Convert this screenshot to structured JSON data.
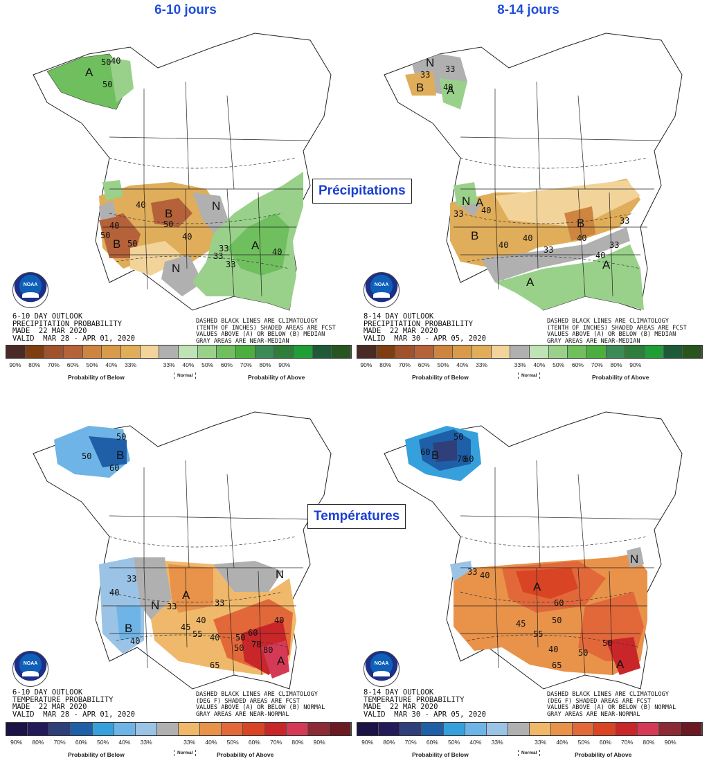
{
  "headers": {
    "left": "6-10 jours",
    "right": "8-14 jours"
  },
  "sections": {
    "precip": "Précipitations",
    "temp": "Températures"
  },
  "logo": {
    "text": "NOAA"
  },
  "panels": {
    "p610": {
      "outlook_text": "6-10 DAY OUTLOOK\nPRECIPITATION PROBABILITY\nMADE  22 MAR 2020\nVALID  MAR 28 - APR 01, 2020",
      "note": "DASHED BLACK LINES ARE CLIMATOLOGY\n(TENTH OF INCHES) SHADED AREAS ARE FCST\nVALUES ABOVE (A) OR BELOW (B) MEDIAN\nGRAY AREAS ARE NEAR-MEDIAN",
      "letters": [
        "A",
        "B",
        "B",
        "N",
        "A",
        "N"
      ],
      "numbers": [
        "50",
        "40",
        "50",
        "40",
        "50",
        "50",
        "40",
        "50",
        "33",
        "40",
        "33",
        "33",
        "40"
      ]
    },
    "p814": {
      "outlook_text": "8-14 DAY OUTLOOK\nPRECIPITATION PROBABILITY\nMADE  22 MAR 2020\nVALID  MAR 30 - APR 05, 2020",
      "note": "DASHED BLACK LINES ARE CLIMATOLOGY\n(TENTH OF INCHES) SHADED AREAS ARE FCST\nVALUES ABOVE (A) OR BELOW (B) MEDIAN\nGRAY AREAS ARE NEAR-MEDIAN",
      "letters": [
        "N",
        "B",
        "A",
        "N",
        "B",
        "B",
        "A",
        "A",
        "A"
      ],
      "numbers": [
        "33",
        "33",
        "40",
        "33",
        "40",
        "40",
        "40",
        "33",
        "33",
        "40",
        "33",
        "40"
      ]
    },
    "t610": {
      "outlook_text": "6-10 DAY OUTLOOK\nTEMPERATURE PROBABILITY\nMADE  22 MAR 2020\nVALID  MAR 28 - APR 01, 2020",
      "note": "DASHED BLACK LINES ARE CLIMATOLOGY\n(DEG F) SHADED AREAS ARE FCST\nVALUES ABOVE (A) OR BELOW (B) NORMAL\nGRAY AREAS ARE NEAR-NORMAL",
      "letters": [
        "B",
        "B",
        "A",
        "N",
        "N",
        "A"
      ],
      "numbers": [
        "50",
        "50",
        "60",
        "40",
        "33",
        "40",
        "33",
        "33",
        "40",
        "45",
        "40",
        "55",
        "50",
        "60",
        "70",
        "80",
        "65",
        "40",
        "50"
      ]
    },
    "t814": {
      "outlook_text": "8-14 DAY OUTLOOK\nTEMPERATURE PROBABILITY\nMADE  22 MAR 2020\nVALID  MAR 30 - APR 05, 2020",
      "note": "DASHED BLACK LINES ARE CLIMATOLOGY\n(DEG F) SHADED AREAS ARE FCST\nVALUES ABOVE (A) OR BELOW (B) NORMAL\nGRAY AREAS ARE NEAR-NORMAL",
      "letters": [
        "B",
        "A",
        "N",
        "A"
      ],
      "numbers": [
        "50",
        "60",
        "70",
        "60",
        "33",
        "40",
        "60",
        "45",
        "50",
        "55",
        "40",
        "50",
        "50",
        "65"
      ]
    }
  },
  "legends": {
    "precip": {
      "below_colors": [
        "#4a2a24",
        "#7f3d12",
        "#a0522d",
        "#b5623a",
        "#cd853f",
        "#d99b4a",
        "#e0ad5a",
        "#f2d49a"
      ],
      "normal_color": "#b0b0b0",
      "above_colors": [
        "#bfe3b4",
        "#99d18a",
        "#6fbf5e",
        "#4cae3f",
        "#3c8a55",
        "#2f7d3a",
        "#1f9e38",
        "#1e5a37",
        "#27541f"
      ],
      "pct": [
        "90%",
        "80%",
        "70%",
        "60%",
        "50%",
        "40%",
        "33%",
        "33%",
        "40%",
        "50%",
        "60%",
        "70%",
        "80%",
        "90%"
      ],
      "below_label": "Probability of Below",
      "normal_label": "Normal",
      "above_label": "Probability of Above"
    },
    "temp": {
      "below_colors": [
        "#1b1245",
        "#231a5c",
        "#2f3f7a",
        "#1e5fa8",
        "#36a0dd",
        "#6fb4e6",
        "#9bc3e6"
      ],
      "normal_color": "#b0b0b0",
      "above_colors": [
        "#f0b86a",
        "#e8924a",
        "#e2683a",
        "#d94424",
        "#c9262a",
        "#d43a55",
        "#8c2a35",
        "#6b1a22"
      ],
      "pct": [
        "90%",
        "80%",
        "70%",
        "60%",
        "50%",
        "40%",
        "33%",
        "33%",
        "40%",
        "50%",
        "60%",
        "70%",
        "80%",
        "90%"
      ],
      "below_label": "Probability of Below",
      "normal_label": "Normal",
      "above_label": "Probability of Above"
    }
  }
}
